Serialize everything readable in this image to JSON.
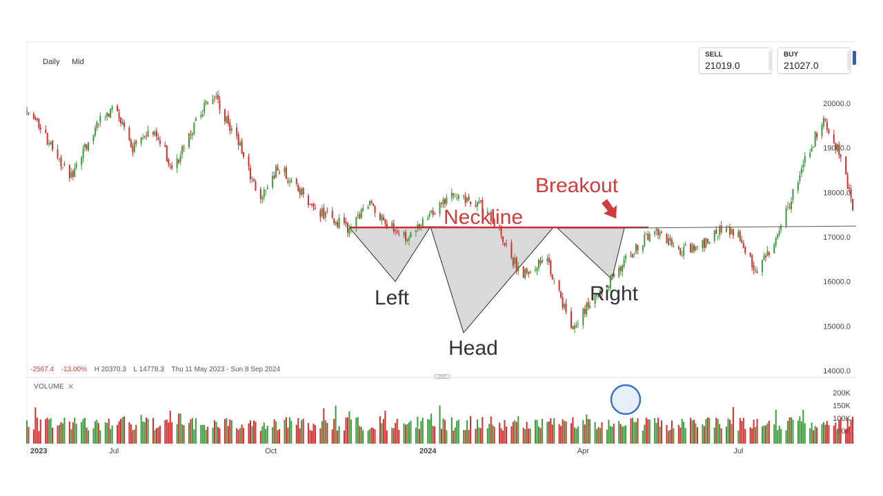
{
  "toolbar": {
    "timeframe": "Daily",
    "price_type": "Mid"
  },
  "quotes": {
    "sell_label": "SELL",
    "sell_value": "21019.0",
    "buy_label": "BUY",
    "buy_value": "21027.0"
  },
  "stats": {
    "change": "-2567.4",
    "change_pct": "-13.00%",
    "high": "H 20370.3",
    "low": "L 14778.3",
    "range": "Thu 11 May 2023 - Sun 8 Sep 2024"
  },
  "volume_panel": {
    "title": "VOLUME",
    "close_label": "✕"
  },
  "colors": {
    "up": "#3a9a3a",
    "down": "#d62c2c",
    "pattern_line": "#2a2a2a",
    "neckline": "#c73030",
    "annotation_red": "#d03b3b",
    "circle": "#3b73c4"
  },
  "chart_data": {
    "type": "candlestick",
    "x_range": [
      "2023-05-11",
      "2024-09-08"
    ],
    "x_tick_labels": [
      {
        "label": "2023",
        "date": "2023-05-11",
        "bold": true
      },
      {
        "label": "Jul",
        "date": "2023-07-01",
        "bold": false
      },
      {
        "label": "Oct",
        "date": "2023-10-01",
        "bold": false
      },
      {
        "label": "2024",
        "date": "2024-01-01",
        "bold": true
      },
      {
        "label": "Apr",
        "date": "2024-04-01",
        "bold": false
      },
      {
        "label": "Jul",
        "date": "2024-07-01",
        "bold": false
      }
    ],
    "price_axis": {
      "ylim": [
        14000,
        20000
      ],
      "ticks": [
        "20000.0",
        "19000.0",
        "18000.0",
        "17000.0",
        "16000.0",
        "15000.0",
        "14000.0"
      ]
    },
    "volume_axis": {
      "ylim": [
        0,
        200000
      ],
      "ticks": [
        "200K",
        "150K",
        "100K",
        "50K"
      ]
    },
    "price_path": [
      {
        "date": "2023-05-11",
        "close": 19800
      },
      {
        "date": "2023-05-25",
        "close": 19100
      },
      {
        "date": "2023-06-05",
        "close": 18300
      },
      {
        "date": "2023-06-20",
        "close": 19500
      },
      {
        "date": "2023-07-01",
        "close": 19900
      },
      {
        "date": "2023-07-12",
        "close": 19000
      },
      {
        "date": "2023-07-25",
        "close": 19400
      },
      {
        "date": "2023-08-05",
        "close": 18500
      },
      {
        "date": "2023-08-18",
        "close": 19600
      },
      {
        "date": "2023-08-28",
        "close": 20200
      },
      {
        "date": "2023-09-10",
        "close": 19300
      },
      {
        "date": "2023-09-25",
        "close": 17800
      },
      {
        "date": "2023-10-05",
        "close": 18600
      },
      {
        "date": "2023-10-18",
        "close": 18000
      },
      {
        "date": "2023-11-01",
        "close": 17500
      },
      {
        "date": "2023-11-15",
        "close": 17200
      },
      {
        "date": "2023-11-28",
        "close": 17800
      },
      {
        "date": "2023-12-08",
        "close": 17300
      },
      {
        "date": "2023-12-20",
        "close": 17000
      },
      {
        "date": "2024-01-01",
        "close": 17500
      },
      {
        "date": "2024-01-15",
        "close": 17900
      },
      {
        "date": "2024-02-01",
        "close": 17700
      },
      {
        "date": "2024-02-12",
        "close": 17100
      },
      {
        "date": "2024-02-25",
        "close": 16100
      },
      {
        "date": "2024-03-10",
        "close": 16600
      },
      {
        "date": "2024-03-25",
        "close": 15000
      },
      {
        "date": "2024-04-10",
        "close": 15700
      },
      {
        "date": "2024-04-22",
        "close": 16300
      },
      {
        "date": "2024-05-05",
        "close": 16900
      },
      {
        "date": "2024-05-15",
        "close": 17100
      },
      {
        "date": "2024-05-28",
        "close": 16700
      },
      {
        "date": "2024-06-10",
        "close": 16800
      },
      {
        "date": "2024-06-22",
        "close": 17200
      },
      {
        "date": "2024-07-01",
        "close": 17100
      },
      {
        "date": "2024-07-12",
        "close": 16200
      },
      {
        "date": "2024-07-25",
        "close": 17100
      },
      {
        "date": "2024-08-08",
        "close": 18600
      },
      {
        "date": "2024-08-20",
        "close": 19700
      },
      {
        "date": "2024-08-31",
        "close": 18700
      },
      {
        "date": "2024-09-08",
        "close": 17300
      }
    ],
    "pattern": {
      "name": "Inverse head and shoulders",
      "neckline_label": "Neckline",
      "neckline_value": 17200,
      "breakout_label": "Breakout",
      "troughs": [
        {
          "label": "Left",
          "value": 16000
        },
        {
          "label": "Head",
          "value": 14850
        },
        {
          "label": "Right",
          "value": 16050
        }
      ]
    }
  }
}
